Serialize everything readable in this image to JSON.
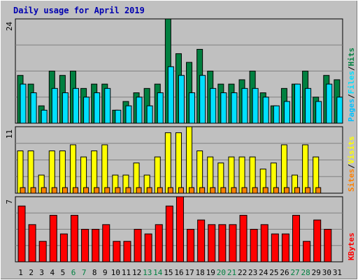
{
  "title": "Daily usage for April 2019",
  "colors": {
    "hits": "#008040",
    "files": "#00e0ff",
    "pages": "#00c0ff",
    "visits": "#ffff00",
    "sites": "#ff8000",
    "kbytes": "#ff0000",
    "weekend_label": "#008040",
    "weekday_label": "#000000",
    "title": "#0000b0",
    "panel_bg": "#c0c0c0",
    "grid": "#808080"
  },
  "chart_data": [
    {
      "type": "bar",
      "panel": "top",
      "max_label": "24",
      "ylim": [
        0,
        24
      ],
      "right_labels": [
        "Pages",
        "Files",
        "Hits"
      ],
      "categories": [
        "1",
        "2",
        "3",
        "4",
        "5",
        "6",
        "7",
        "8",
        "9",
        "10",
        "11",
        "12",
        "13",
        "14",
        "15",
        "16",
        "17",
        "18",
        "19",
        "20",
        "21",
        "22",
        "23",
        "24",
        "25",
        "26",
        "27",
        "28",
        "29",
        "30",
        "31"
      ],
      "weekend_days": [
        6,
        7,
        13,
        14,
        20,
        21,
        27,
        28
      ],
      "series": [
        {
          "name": "Hits",
          "values": [
            11,
            9,
            4,
            12,
            11,
            12,
            8,
            9,
            9,
            3,
            5,
            7,
            8,
            9,
            24,
            16,
            14,
            17,
            12,
            9,
            9,
            10,
            12,
            7,
            4,
            8,
            9,
            12,
            6,
            11,
            10
          ]
        },
        {
          "name": "Files",
          "values": [
            9,
            7,
            3,
            8,
            7,
            8,
            6,
            7,
            8,
            3,
            4,
            6,
            4,
            7,
            13,
            11,
            7,
            11,
            8,
            7,
            7,
            8,
            8,
            6,
            4,
            5,
            9,
            8,
            5,
            9,
            6
          ]
        },
        {
          "name": "Pages",
          "values": [
            0,
            0,
            0,
            0,
            0,
            0,
            0,
            0,
            0,
            0,
            0,
            0,
            0,
            0,
            0,
            0,
            0,
            0,
            0,
            0,
            0,
            0,
            0,
            0,
            0,
            0,
            0,
            0,
            0,
            0,
            0
          ]
        }
      ]
    },
    {
      "type": "bar",
      "panel": "middle",
      "max_label": "11",
      "ylim": [
        0,
        11
      ],
      "right_labels": [
        "Sites",
        "Visits"
      ],
      "categories": [
        "1",
        "2",
        "3",
        "4",
        "5",
        "6",
        "7",
        "8",
        "9",
        "10",
        "11",
        "12",
        "13",
        "14",
        "15",
        "16",
        "17",
        "18",
        "19",
        "20",
        "21",
        "22",
        "23",
        "24",
        "25",
        "26",
        "27",
        "28",
        "29",
        "30",
        "31"
      ],
      "series": [
        {
          "name": "Visits",
          "values": [
            7,
            7,
            3,
            7,
            7,
            8,
            6,
            7,
            8,
            3,
            3,
            5,
            3,
            6,
            10,
            10,
            11,
            7,
            6,
            5,
            6,
            6,
            6,
            4,
            5,
            8,
            3,
            8,
            6,
            0,
            0
          ]
        },
        {
          "name": "Sites",
          "values": [
            1,
            1,
            1,
            1,
            1,
            1,
            1,
            1,
            1,
            1,
            1,
            1,
            1,
            1,
            1,
            1,
            1,
            1,
            1,
            1,
            1,
            1,
            1,
            1,
            1,
            1,
            1,
            1,
            1,
            0,
            0
          ]
        }
      ]
    },
    {
      "type": "bar",
      "panel": "bottom",
      "max_label": "7",
      "ylim": [
        0,
        7
      ],
      "right_labels": [
        "KBytes"
      ],
      "categories": [
        "1",
        "2",
        "3",
        "4",
        "5",
        "6",
        "7",
        "8",
        "9",
        "10",
        "11",
        "12",
        "13",
        "14",
        "15",
        "16",
        "17",
        "18",
        "19",
        "20",
        "21",
        "22",
        "23",
        "24",
        "25",
        "26",
        "27",
        "28",
        "29",
        "30",
        "31"
      ],
      "series": [
        {
          "name": "KBytes",
          "values": [
            6,
            4,
            2.2,
            5,
            3,
            5,
            3.5,
            3.5,
            4,
            2.2,
            2.2,
            3.5,
            3,
            4,
            6,
            7,
            3.5,
            4.5,
            4,
            4,
            4,
            5,
            3.5,
            4,
            3,
            3,
            5,
            2.2,
            4.5,
            3.5,
            0
          ]
        }
      ]
    }
  ]
}
